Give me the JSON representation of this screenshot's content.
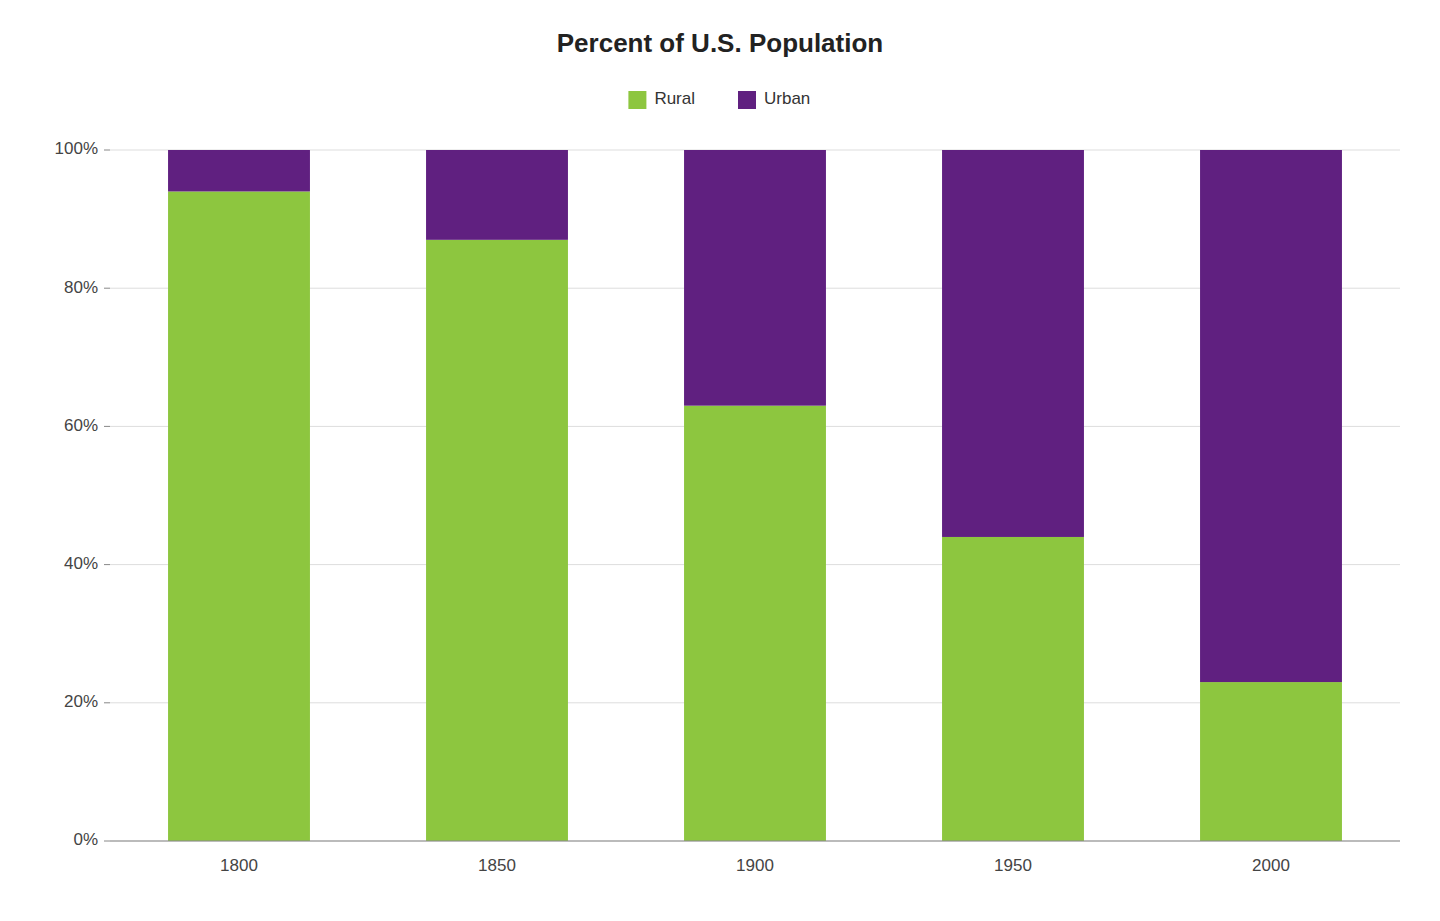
{
  "chart_data": {
    "type": "bar",
    "title": "Percent of U.S. Population",
    "categories": [
      "1800",
      "1850",
      "1900",
      "1950",
      "2000"
    ],
    "series": [
      {
        "name": "Rural",
        "color": "#8dc63f",
        "values": [
          94,
          87,
          63,
          44,
          23
        ]
      },
      {
        "name": "Urban",
        "color": "#602080",
        "values": [
          6,
          13,
          37,
          56,
          77
        ]
      }
    ],
    "stacked": true,
    "ylim": [
      0,
      100
    ],
    "yticks": [
      {
        "value": 0,
        "label": "0%"
      },
      {
        "value": 20,
        "label": "20%"
      },
      {
        "value": 40,
        "label": "40%"
      },
      {
        "value": 60,
        "label": "60%"
      },
      {
        "value": 80,
        "label": "80%"
      },
      {
        "value": 100,
        "label": "100%"
      }
    ],
    "grid": true,
    "legend": "top"
  }
}
